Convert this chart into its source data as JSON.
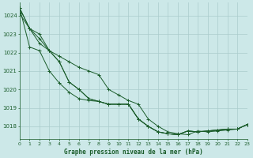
{
  "title": "Graphe pression niveau de la mer (hPa)",
  "bg_color": "#cce8e8",
  "grid_color": "#aacccc",
  "line_color": "#1a5c2a",
  "xlim": [
    0,
    23
  ],
  "ylim": [
    1017.3,
    1024.7
  ],
  "xticks": [
    0,
    1,
    2,
    3,
    4,
    5,
    6,
    7,
    8,
    9,
    10,
    11,
    12,
    13,
    14,
    15,
    16,
    17,
    18,
    19,
    20,
    21,
    22,
    23
  ],
  "yticks": [
    1018,
    1019,
    1020,
    1021,
    1022,
    1023,
    1024
  ],
  "series": [
    [
      1024.1,
      1023.3,
      1022.75,
      1022.1,
      1021.5,
      1020.4,
      1020.0,
      1019.5,
      1019.35,
      1019.2,
      1019.2,
      1019.2,
      1018.4,
      1018.0,
      1017.7,
      1017.6,
      1017.55,
      1017.75,
      1017.7,
      1017.75,
      1017.8,
      1017.85,
      1017.85,
      1018.1
    ],
    [
      1024.4,
      1023.3,
      1023.0,
      1022.1,
      1021.8,
      1021.5,
      1021.2,
      1021.0,
      1020.8,
      1020.0,
      1019.7,
      1019.4,
      1019.2,
      1018.4,
      1018.0,
      1017.7,
      1017.6,
      1017.55,
      1017.75,
      1017.7,
      1017.75,
      1017.8,
      1017.85,
      1018.1
    ],
    [
      1024.4,
      1023.3,
      1022.5,
      1022.1,
      1021.5,
      1020.4,
      1020.0,
      1019.5,
      1019.35,
      1019.2,
      1019.2,
      1019.2,
      1018.4,
      1018.0,
      1017.7,
      1017.6,
      1017.55,
      1017.75,
      1017.7,
      1017.75,
      1017.8,
      1017.85,
      1017.85,
      1018.1
    ],
    [
      1024.4,
      1022.3,
      1022.1,
      1021.0,
      1020.35,
      1019.85,
      1019.5,
      1019.4,
      1019.35,
      1019.2,
      1019.2,
      1019.2,
      1018.4,
      1018.0,
      1017.7,
      1017.6,
      1017.55,
      1017.75,
      1017.7,
      1017.75,
      1017.8,
      1017.85,
      1017.85,
      1018.1
    ]
  ]
}
